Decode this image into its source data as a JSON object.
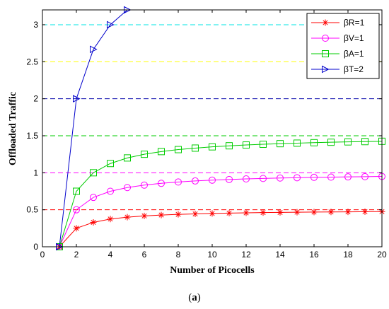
{
  "caption": {
    "open": "(",
    "letter": "a",
    "close": ")"
  },
  "chart_data": {
    "type": "line",
    "xlabel": "Number of Picocells",
    "ylabel": "Offloaded Traffic",
    "xlim": [
      0,
      20
    ],
    "ylim": [
      0,
      3.2
    ],
    "xticks": [
      0,
      2,
      4,
      6,
      8,
      10,
      12,
      14,
      16,
      18,
      20
    ],
    "yticks": [
      0,
      0.5,
      1,
      1.5,
      2,
      2.5,
      3
    ],
    "ytick_labels": [
      "0",
      "0.5",
      "1",
      "1.5",
      "2",
      "2.5",
      "3"
    ],
    "grid": false,
    "legend_position": "top-right",
    "series": [
      {
        "name": "βR=1",
        "color": "#ff0000",
        "marker": "star",
        "x": [
          1,
          2,
          3,
          4,
          5,
          6,
          7,
          8,
          9,
          10,
          11,
          12,
          13,
          14,
          15,
          16,
          17,
          18,
          19,
          20
        ],
        "y": [
          0,
          0.25,
          0.33,
          0.375,
          0.4,
          0.417,
          0.429,
          0.438,
          0.444,
          0.45,
          0.455,
          0.458,
          0.462,
          0.464,
          0.467,
          0.469,
          0.471,
          0.472,
          0.474,
          0.475
        ]
      },
      {
        "name": "βV=1",
        "color": "#ff00ff",
        "marker": "circle",
        "x": [
          1,
          2,
          3,
          4,
          5,
          6,
          7,
          8,
          9,
          10,
          11,
          12,
          13,
          14,
          15,
          16,
          17,
          18,
          19,
          20
        ],
        "y": [
          0,
          0.5,
          0.667,
          0.75,
          0.8,
          0.833,
          0.857,
          0.875,
          0.889,
          0.9,
          0.909,
          0.917,
          0.923,
          0.929,
          0.933,
          0.938,
          0.941,
          0.944,
          0.947,
          0.95
        ]
      },
      {
        "name": "βA=1",
        "color": "#00cc00",
        "marker": "square",
        "x": [
          1,
          2,
          3,
          4,
          5,
          6,
          7,
          8,
          9,
          10,
          11,
          12,
          13,
          14,
          15,
          16,
          17,
          18,
          19,
          20
        ],
        "y": [
          0,
          0.75,
          1.0,
          1.125,
          1.2,
          1.25,
          1.286,
          1.313,
          1.333,
          1.35,
          1.364,
          1.375,
          1.385,
          1.393,
          1.4,
          1.406,
          1.412,
          1.417,
          1.421,
          1.425
        ]
      },
      {
        "name": "βT=2",
        "color": "#0000cc",
        "marker": "triangle-right",
        "x": [
          1,
          2,
          3,
          4,
          5
        ],
        "y": [
          0,
          2.0,
          2.667,
          3.0,
          3.2
        ]
      }
    ],
    "reference_lines": [
      {
        "y": 0.5,
        "color": "#ff0000"
      },
      {
        "y": 1.0,
        "color": "#ff00ff"
      },
      {
        "y": 1.5,
        "color": "#00cc00"
      },
      {
        "y": 2.0,
        "color": "#0000aa"
      },
      {
        "y": 2.5,
        "color": "#ffff00"
      },
      {
        "y": 3.0,
        "color": "#00e5e5"
      }
    ]
  }
}
